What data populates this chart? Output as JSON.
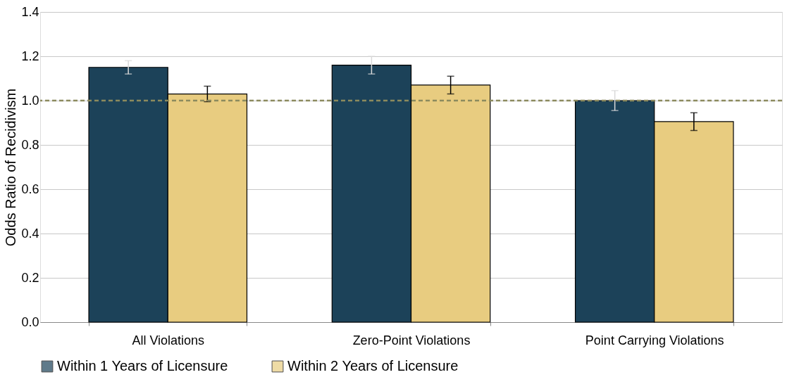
{
  "chart_data": {
    "type": "bar",
    "ylabel": "Odds Ratio of Recidivism",
    "categories": [
      "All Violations",
      "Zero-Point Violations",
      "Point Carrying Violations"
    ],
    "series": [
      {
        "name": "Within 1 Years of Licensure",
        "color": "#1c4259",
        "values": [
          1.15,
          1.16,
          1.0
        ],
        "errors": [
          0.03,
          0.04,
          0.045
        ]
      },
      {
        "name": "Within 2 Years of Licensure",
        "color": "#e8cc80",
        "values": [
          1.03,
          1.07,
          0.905
        ],
        "errors": [
          0.035,
          0.04,
          0.04
        ]
      }
    ],
    "ylim": [
      0,
      1.4
    ],
    "yticks": [
      {
        "value": 0,
        "label": "0.0"
      },
      0.2,
      0.4,
      0.6,
      0.8,
      {
        "value": 1,
        "label": "1.0"
      },
      1.2,
      1.4
    ],
    "ref_lines": [
      {
        "axis": "y",
        "value": 1.0,
        "color": "#8c8a5e",
        "line_style": "dashed"
      }
    ],
    "grid": "y",
    "legend": "bottom"
  }
}
